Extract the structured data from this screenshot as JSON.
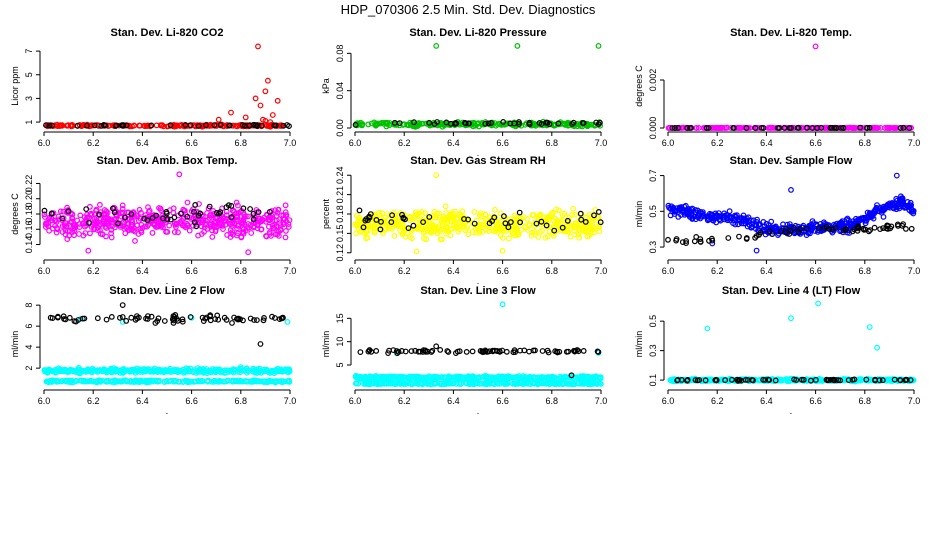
{
  "page": {
    "title": "HDP_070306  2.5 Min. Std. Dev. Diagnostics"
  },
  "chart_data": [
    {
      "type": "scatter",
      "title": "Stan. Dev. Li-820 CO2",
      "xlabel": ".",
      "ylabel": "Licor ppm",
      "xlim": [
        6.0,
        7.0
      ],
      "ylim": [
        0.5,
        7.6
      ],
      "xticks": [
        6.0,
        6.2,
        6.4,
        6.6,
        6.8,
        7.0
      ],
      "xtick_labels": [
        "6.0",
        "6.2",
        "6.4",
        "6.6",
        "6.8",
        "7.0"
      ],
      "yticks": [
        1,
        3,
        5,
        7
      ],
      "ytick_labels": [
        "1",
        "3",
        "5",
        "7"
      ],
      "series": [
        {
          "name": "primary",
          "color": "#ff0000",
          "kind": "band",
          "x_range": [
            6.0,
            7.0
          ],
          "y_center": 0.7,
          "y_spread": 0.1,
          "n": 220,
          "extra_points": [
            [
              6.71,
              1.2
            ],
            [
              6.76,
              1.8
            ],
            [
              6.82,
              1.4
            ],
            [
              6.86,
              3.0
            ],
            [
              6.87,
              7.4
            ],
            [
              6.88,
              2.4
            ],
            [
              6.89,
              1.2
            ],
            [
              6.9,
              3.6
            ],
            [
              6.91,
              4.5
            ],
            [
              6.93,
              1.6
            ],
            [
              6.95,
              2.8
            ],
            [
              6.9,
              1.1
            ],
            [
              6.92,
              1.0
            ]
          ]
        },
        {
          "name": "secondary",
          "color": "#000000",
          "kind": "band",
          "x_range": [
            6.0,
            7.0
          ],
          "y_center": 0.72,
          "y_spread": 0.08,
          "n": 40,
          "extra_points": []
        }
      ]
    },
    {
      "type": "scatter",
      "title": "Stan. Dev. Li-820 Pressure",
      "xlabel": ".",
      "ylabel": "kPa",
      "xlim": [
        6.0,
        7.0
      ],
      "ylim": [
        0.0,
        0.09
      ],
      "xticks": [
        6.0,
        6.2,
        6.4,
        6.6,
        6.8,
        7.0
      ],
      "xtick_labels": [
        "6.0",
        "6.2",
        "6.4",
        "6.6",
        "6.8",
        "7.0"
      ],
      "yticks": [
        0.0,
        0.04,
        0.08
      ],
      "ytick_labels": [
        "0.00",
        "0.04",
        "0.08"
      ],
      "series": [
        {
          "name": "primary",
          "color": "#00c000",
          "kind": "band",
          "x_range": [
            6.0,
            7.0
          ],
          "y_center": 0.004,
          "y_spread": 0.003,
          "n": 260,
          "extra_points": [
            [
              6.33,
              0.088
            ],
            [
              6.66,
              0.088
            ],
            [
              6.99,
              0.088
            ]
          ]
        },
        {
          "name": "secondary",
          "color": "#000000",
          "kind": "band",
          "x_range": [
            6.0,
            7.0
          ],
          "y_center": 0.005,
          "y_spread": 0.002,
          "n": 40,
          "extra_points": []
        }
      ]
    },
    {
      "type": "scatter",
      "title": "Stan. Dev. Li-820 Temp.",
      "xlabel": ".",
      "ylabel": "degrees C",
      "xlim": [
        6.0,
        7.0
      ],
      "ylim": [
        0.0,
        0.0035
      ],
      "xticks": [
        6.0,
        6.2,
        6.4,
        6.6,
        6.8,
        7.0
      ],
      "xtick_labels": [
        "6.0",
        "6.2",
        "6.4",
        "6.6",
        "6.8",
        "7.0"
      ],
      "yticks": [
        0.0,
        0.002
      ],
      "ytick_labels": [
        "0.000",
        "0.002"
      ],
      "series": [
        {
          "name": "primary",
          "color": "#ff00ff",
          "kind": "band",
          "x_range": [
            6.0,
            7.0
          ],
          "y_center": 0.0,
          "y_spread": 2e-05,
          "n": 220,
          "extra_points": [
            [
              6.6,
              0.0034
            ]
          ]
        },
        {
          "name": "secondary",
          "color": "#000000",
          "kind": "band",
          "x_range": [
            6.0,
            7.0
          ],
          "y_center": 0.0,
          "y_spread": 2e-05,
          "n": 40,
          "extra_points": []
        }
      ]
    },
    {
      "type": "scatter",
      "title": "Stan. Dev. Amb. Box Temp.",
      "xlabel": ".",
      "ylabel": "degrees C",
      "xlim": [
        6.0,
        7.0
      ],
      "ylim": [
        0.125,
        0.235
      ],
      "xticks": [
        6.0,
        6.2,
        6.4,
        6.6,
        6.8,
        7.0
      ],
      "xtick_labels": [
        "6.0",
        "6.2",
        "6.4",
        "6.6",
        "6.8",
        "7.0"
      ],
      "yticks": [
        0.14,
        0.16,
        0.18,
        0.2,
        0.22
      ],
      "ytick_labels": [
        "0.14",
        "0.16",
        "0.18",
        "0.20",
        "0.22"
      ],
      "series": [
        {
          "name": "primary",
          "color": "#ff00ff",
          "kind": "band",
          "x_range": [
            6.0,
            7.0
          ],
          "y_center": 0.17,
          "y_spread": 0.028,
          "n": 520,
          "extra_points": [
            [
              6.55,
              0.232
            ],
            [
              6.83,
              0.13
            ],
            [
              6.18,
              0.132
            ]
          ]
        },
        {
          "name": "secondary",
          "color": "#000000",
          "kind": "band",
          "x_range": [
            6.0,
            7.0
          ],
          "y_center": 0.18,
          "y_spread": 0.02,
          "n": 45,
          "extra_points": []
        }
      ]
    },
    {
      "type": "scatter",
      "title": "Stan. Dev. Gas Stream RH",
      "xlabel": ".",
      "ylabel": "percent",
      "xlim": [
        6.0,
        7.0
      ],
      "ylim": [
        0.115,
        0.245
      ],
      "xticks": [
        6.0,
        6.2,
        6.4,
        6.6,
        6.8,
        7.0
      ],
      "xtick_labels": [
        "6.0",
        "6.2",
        "6.4",
        "6.6",
        "6.8",
        "7.0"
      ],
      "yticks": [
        0.12,
        0.15,
        0.18,
        0.21,
        0.24
      ],
      "ytick_labels": [
        "0.12",
        "0.15",
        "0.18",
        "0.21",
        "0.24"
      ],
      "series": [
        {
          "name": "primary",
          "color": "#ffff00",
          "kind": "band",
          "x_range": [
            6.0,
            7.0
          ],
          "y_center": 0.165,
          "y_spread": 0.03,
          "n": 520,
          "extra_points": [
            [
              6.33,
              0.24
            ],
            [
              6.25,
              0.122
            ],
            [
              6.6,
              0.123
            ]
          ]
        },
        {
          "name": "secondary",
          "color": "#000000",
          "kind": "band",
          "x_range": [
            6.0,
            7.0
          ],
          "y_center": 0.17,
          "y_spread": 0.022,
          "n": 45,
          "extra_points": []
        }
      ]
    },
    {
      "type": "scatter",
      "title": "Stan. Dev. Sample Flow",
      "xlabel": ".",
      "ylabel": "ml/min",
      "xlim": [
        6.0,
        7.0
      ],
      "ylim": [
        0.25,
        0.72
      ],
      "xticks": [
        6.0,
        6.2,
        6.4,
        6.6,
        6.8,
        7.0
      ],
      "xtick_labels": [
        "6.0",
        "6.2",
        "6.4",
        "6.6",
        "6.8",
        "7.0"
      ],
      "yticks": [
        0.3,
        0.5,
        0.7
      ],
      "ytick_labels": [
        "0.3",
        "0.5",
        "0.7"
      ],
      "series": [
        {
          "name": "primary",
          "color": "#0000ff",
          "kind": "curve",
          "x_range": [
            6.0,
            7.0
          ],
          "curve_x": [
            6.0,
            6.15,
            6.3,
            6.4,
            6.55,
            6.75,
            6.85,
            6.95,
            7.0
          ],
          "curve_y": [
            0.52,
            0.47,
            0.46,
            0.4,
            0.4,
            0.42,
            0.5,
            0.55,
            0.5
          ],
          "y_spread": 0.05,
          "n": 480,
          "extra_points": [
            [
              6.5,
              0.62
            ],
            [
              6.93,
              0.7
            ],
            [
              6.36,
              0.28
            ],
            [
              6.18,
              0.32
            ]
          ]
        },
        {
          "name": "secondary",
          "color": "#000000",
          "kind": "curve",
          "x_range": [
            6.0,
            7.0
          ],
          "curve_x": [
            6.0,
            6.15,
            6.3,
            6.4,
            6.55,
            6.75,
            6.85,
            6.95,
            7.0
          ],
          "curve_y": [
            0.34,
            0.34,
            0.35,
            0.38,
            0.4,
            0.4,
            0.4,
            0.42,
            0.4
          ],
          "y_spread": 0.025,
          "n": 70,
          "extra_points": []
        }
      ]
    },
    {
      "type": "scatter",
      "title": "Stan. Dev. Line 2 Flow",
      "xlabel": ".",
      "ylabel": "ml/min",
      "xlim": [
        6.0,
        7.0
      ],
      "ylim": [
        0.3,
        8.3
      ],
      "xticks": [
        6.0,
        6.2,
        6.4,
        6.6,
        6.8,
        7.0
      ],
      "xtick_labels": [
        "6.0",
        "6.2",
        "6.4",
        "6.6",
        "6.8",
        "7.0"
      ],
      "yticks": [
        2,
        4,
        6,
        8
      ],
      "ytick_labels": [
        "2",
        "4",
        "6",
        "8"
      ],
      "series": [
        {
          "name": "primary",
          "color": "#00ffff",
          "kind": "band",
          "x_range": [
            6.0,
            7.0
          ],
          "y_center": 1.75,
          "y_spread": 0.3,
          "n": 380,
          "extra_points": [
            [
              6.32,
              6.4
            ],
            [
              6.15,
              6.7
            ],
            [
              6.6,
              6.8
            ],
            [
              6.8,
              2.1
            ],
            [
              6.99,
              6.4
            ]
          ]
        },
        {
          "name": "primary-low",
          "color": "#00ffff",
          "kind": "band",
          "x_range": [
            6.0,
            7.0
          ],
          "y_center": 0.75,
          "y_spread": 0.15,
          "n": 260,
          "extra_points": []
        },
        {
          "name": "secondary",
          "color": "#000000",
          "kind": "band",
          "x_range": [
            6.02,
            6.99
          ],
          "y_center": 6.7,
          "y_spread": 0.5,
          "n": 75,
          "extra_points": [
            [
              6.32,
              8.0
            ],
            [
              6.88,
              4.3
            ]
          ]
        }
      ]
    },
    {
      "type": "scatter",
      "title": "Stan. Dev. Line 3 Flow",
      "xlabel": ".",
      "ylabel": "ml/min",
      "xlim": [
        6.0,
        7.0
      ],
      "ylim": [
        0.5,
        18.5
      ],
      "xticks": [
        6.0,
        6.2,
        6.4,
        6.6,
        6.8,
        7.0
      ],
      "xtick_labels": [
        "6.0",
        "6.2",
        "6.4",
        "6.6",
        "6.8",
        "7.0"
      ],
      "yticks": [
        5,
        10,
        15
      ],
      "ytick_labels": [
        "5",
        "10",
        "15"
      ],
      "series": [
        {
          "name": "primary",
          "color": "#00ffff",
          "kind": "band",
          "x_range": [
            6.0,
            7.0
          ],
          "y_center": 2.3,
          "y_spread": 0.5,
          "n": 400,
          "extra_points": [
            [
              6.6,
              18.0
            ],
            [
              6.17,
              7.5
            ],
            [
              6.99,
              7.6
            ]
          ]
        },
        {
          "name": "primary-low",
          "color": "#00ffff",
          "kind": "band",
          "x_range": [
            6.0,
            7.0
          ],
          "y_center": 1.0,
          "y_spread": 0.2,
          "n": 240,
          "extra_points": []
        },
        {
          "name": "secondary",
          "color": "#000000",
          "kind": "band",
          "x_range": [
            6.02,
            6.99
          ],
          "y_center": 7.9,
          "y_spread": 0.5,
          "n": 75,
          "extra_points": [
            [
              6.33,
              9.0
            ],
            [
              6.88,
              2.8
            ]
          ]
        }
      ]
    },
    {
      "type": "scatter",
      "title": "Stan. Dev. Line 4 (LT) Flow",
      "xlabel": ".",
      "ylabel": "ml/min",
      "xlim": [
        6.0,
        7.0
      ],
      "ylim": [
        0.06,
        0.63
      ],
      "xticks": [
        6.0,
        6.2,
        6.4,
        6.6,
        6.8,
        7.0
      ],
      "xtick_labels": [
        "6.0",
        "6.2",
        "6.4",
        "6.6",
        "6.8",
        "7.0"
      ],
      "yticks": [
        0.1,
        0.3,
        0.5
      ],
      "ytick_labels": [
        "0.1",
        "0.3",
        "0.5"
      ],
      "series": [
        {
          "name": "primary",
          "color": "#00ffff",
          "kind": "band",
          "x_range": [
            6.0,
            7.0
          ],
          "y_center": 0.1,
          "y_spread": 0.012,
          "n": 380,
          "extra_points": [
            [
              6.16,
              0.45
            ],
            [
              6.5,
              0.52
            ],
            [
              6.61,
              0.62
            ],
            [
              6.82,
              0.46
            ],
            [
              6.85,
              0.32
            ]
          ]
        },
        {
          "name": "secondary",
          "color": "#000000",
          "kind": "band",
          "x_range": [
            6.02,
            6.99
          ],
          "y_center": 0.1,
          "y_spread": 0.008,
          "n": 60,
          "extra_points": []
        }
      ]
    }
  ]
}
